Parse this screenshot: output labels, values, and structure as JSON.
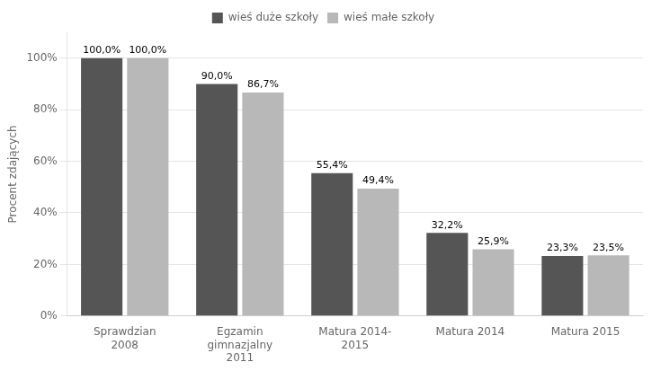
{
  "chart_data": {
    "type": "bar",
    "categories": [
      "Sprawdzian\n2008",
      "Egzamin\ngimnazjalny\n2011",
      "Matura 2014-\n2015",
      "Matura 2014",
      "Matura 2015"
    ],
    "series": [
      {
        "name": "wieś duże szkoły",
        "color": "#555555",
        "values": [
          100.0,
          90.0,
          55.4,
          32.2,
          23.3
        ],
        "value_labels": [
          "100,0%",
          "90,0%",
          "55,4%",
          "32,2%",
          "23,3%"
        ]
      },
      {
        "name": "wieś małe szkoły",
        "color": "#b8b8b8",
        "values": [
          100.0,
          86.7,
          49.4,
          25.9,
          23.5
        ],
        "value_labels": [
          "100,0%",
          "86,7%",
          "49,4%",
          "25,9%",
          "23,5%"
        ]
      }
    ],
    "ylabel": "Procent zdających",
    "ylim": [
      0,
      110
    ],
    "yticks": [
      {
        "value": 0,
        "label": "0%"
      },
      {
        "value": 20,
        "label": "20%"
      },
      {
        "value": 40,
        "label": "40%"
      },
      {
        "value": 60,
        "label": "60%"
      },
      {
        "value": 80,
        "label": "80%"
      },
      {
        "value": 100,
        "label": "100%"
      }
    ],
    "grid": true,
    "legend": "top",
    "data_labels": true
  }
}
